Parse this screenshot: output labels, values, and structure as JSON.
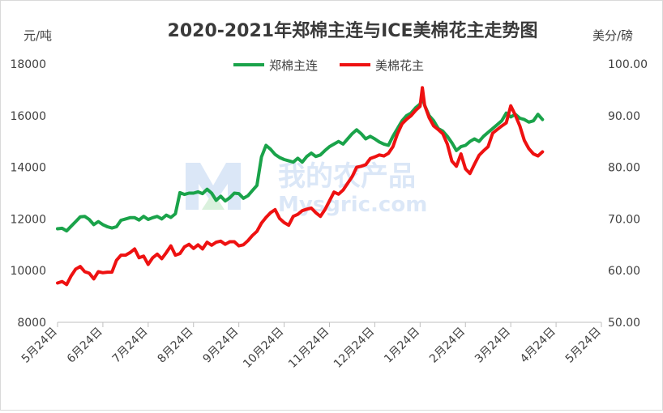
{
  "chart_data": {
    "type": "line",
    "title": "2020-2021年郑棉主连与ICE美棉花主走势图",
    "ylabel_left": "元/吨",
    "ylabel_right": "美分/磅",
    "x_tick_labels": [
      "5月24日",
      "6月24日",
      "7月24日",
      "8月24日",
      "9月24日",
      "10月24日",
      "11月24日",
      "12月24日",
      "1月24日",
      "2月24日",
      "3月24日",
      "4月24日",
      "5月24日"
    ],
    "y_left": {
      "min": 8000,
      "max": 18000,
      "ticks": [
        "8000",
        "10000",
        "12000",
        "14000",
        "16000",
        "18000"
      ]
    },
    "y_right": {
      "min": 50,
      "max": 100,
      "ticks": [
        "50.00",
        "60.00",
        "70.00",
        "80.00",
        "90.00",
        "100.00"
      ]
    },
    "legend": {
      "position": "top-center"
    },
    "watermark": "我的农产品 Mysgric.com",
    "series": [
      {
        "name": "郑棉主连",
        "color": "#1aa34a",
        "axis": "left",
        "points": [
          [
            0,
            11620
          ],
          [
            0.1,
            11640
          ],
          [
            0.2,
            11540
          ],
          [
            0.3,
            11720
          ],
          [
            0.4,
            11900
          ],
          [
            0.5,
            12080
          ],
          [
            0.6,
            12100
          ],
          [
            0.7,
            11980
          ],
          [
            0.8,
            11780
          ],
          [
            0.9,
            11900
          ],
          [
            1.0,
            11780
          ],
          [
            1.1,
            11700
          ],
          [
            1.2,
            11650
          ],
          [
            1.3,
            11700
          ],
          [
            1.4,
            11950
          ],
          [
            1.5,
            12000
          ],
          [
            1.6,
            12050
          ],
          [
            1.7,
            12050
          ],
          [
            1.8,
            11960
          ],
          [
            1.9,
            12100
          ],
          [
            2.0,
            11980
          ],
          [
            2.1,
            12050
          ],
          [
            2.2,
            12100
          ],
          [
            2.3,
            12000
          ],
          [
            2.4,
            12150
          ],
          [
            2.5,
            12060
          ],
          [
            2.6,
            12200
          ],
          [
            2.7,
            13020
          ],
          [
            2.8,
            12950
          ],
          [
            2.9,
            13000
          ],
          [
            3.0,
            13000
          ],
          [
            3.1,
            13050
          ],
          [
            3.2,
            12980
          ],
          [
            3.3,
            13150
          ],
          [
            3.4,
            13000
          ],
          [
            3.5,
            12720
          ],
          [
            3.6,
            12880
          ],
          [
            3.7,
            12700
          ],
          [
            3.8,
            12820
          ],
          [
            3.9,
            13000
          ],
          [
            4.0,
            12980
          ],
          [
            4.1,
            12800
          ],
          [
            4.2,
            12900
          ],
          [
            4.3,
            13100
          ],
          [
            4.4,
            13300
          ],
          [
            4.5,
            14400
          ],
          [
            4.6,
            14850
          ],
          [
            4.7,
            14700
          ],
          [
            4.8,
            14500
          ],
          [
            4.9,
            14380
          ],
          [
            5.0,
            14300
          ],
          [
            5.1,
            14250
          ],
          [
            5.2,
            14200
          ],
          [
            5.3,
            14350
          ],
          [
            5.4,
            14200
          ],
          [
            5.5,
            14420
          ],
          [
            5.6,
            14550
          ],
          [
            5.7,
            14420
          ],
          [
            5.8,
            14480
          ],
          [
            5.9,
            14650
          ],
          [
            6.0,
            14800
          ],
          [
            6.1,
            14900
          ],
          [
            6.2,
            15000
          ],
          [
            6.3,
            14900
          ],
          [
            6.4,
            15100
          ],
          [
            6.5,
            15300
          ],
          [
            6.6,
            15450
          ],
          [
            6.7,
            15300
          ],
          [
            6.8,
            15100
          ],
          [
            6.9,
            15200
          ],
          [
            7.0,
            15100
          ],
          [
            7.1,
            14980
          ],
          [
            7.2,
            14900
          ],
          [
            7.3,
            14850
          ],
          [
            7.4,
            15200
          ],
          [
            7.5,
            15500
          ],
          [
            7.6,
            15800
          ],
          [
            7.7,
            16000
          ],
          [
            7.8,
            16100
          ],
          [
            7.9,
            16300
          ],
          [
            8.0,
            16450
          ],
          [
            8.05,
            16700
          ],
          [
            8.1,
            16400
          ],
          [
            8.2,
            16000
          ],
          [
            8.3,
            15800
          ],
          [
            8.4,
            15500
          ],
          [
            8.5,
            15400
          ],
          [
            8.6,
            15200
          ],
          [
            8.7,
            14950
          ],
          [
            8.8,
            14650
          ],
          [
            8.9,
            14800
          ],
          [
            9.0,
            14850
          ],
          [
            9.1,
            15000
          ],
          [
            9.2,
            15100
          ],
          [
            9.3,
            15000
          ],
          [
            9.4,
            15200
          ],
          [
            9.5,
            15350
          ],
          [
            9.6,
            15500
          ],
          [
            9.7,
            15650
          ],
          [
            9.8,
            15800
          ],
          [
            9.9,
            16100
          ],
          [
            10.0,
            15950
          ],
          [
            10.1,
            16050
          ],
          [
            10.2,
            15900
          ],
          [
            10.3,
            15850
          ],
          [
            10.4,
            15750
          ],
          [
            10.5,
            15800
          ],
          [
            10.6,
            16050
          ],
          [
            10.7,
            15850
          ]
        ]
      },
      {
        "name": "美棉花主",
        "color": "#ee1111",
        "axis": "right",
        "points": [
          [
            0,
            57.6
          ],
          [
            0.1,
            57.9
          ],
          [
            0.2,
            57.3
          ],
          [
            0.3,
            59.0
          ],
          [
            0.4,
            60.3
          ],
          [
            0.5,
            60.8
          ],
          [
            0.6,
            59.8
          ],
          [
            0.7,
            59.5
          ],
          [
            0.8,
            58.4
          ],
          [
            0.9,
            59.8
          ],
          [
            1.0,
            59.6
          ],
          [
            1.1,
            59.7
          ],
          [
            1.2,
            59.7
          ],
          [
            1.3,
            62.0
          ],
          [
            1.4,
            63.0
          ],
          [
            1.5,
            63.0
          ],
          [
            1.6,
            63.5
          ],
          [
            1.7,
            64.2
          ],
          [
            1.8,
            62.5
          ],
          [
            1.9,
            62.8
          ],
          [
            2.0,
            61.2
          ],
          [
            2.1,
            62.5
          ],
          [
            2.2,
            63.2
          ],
          [
            2.3,
            62.3
          ],
          [
            2.4,
            63.5
          ],
          [
            2.5,
            64.8
          ],
          [
            2.6,
            63.0
          ],
          [
            2.7,
            63.3
          ],
          [
            2.8,
            64.6
          ],
          [
            2.9,
            65.1
          ],
          [
            3.0,
            64.3
          ],
          [
            3.1,
            65.0
          ],
          [
            3.2,
            64.2
          ],
          [
            3.3,
            65.5
          ],
          [
            3.4,
            64.9
          ],
          [
            3.5,
            65.5
          ],
          [
            3.6,
            65.7
          ],
          [
            3.7,
            65.1
          ],
          [
            3.8,
            65.6
          ],
          [
            3.9,
            65.6
          ],
          [
            4.0,
            64.8
          ],
          [
            4.1,
            65.0
          ],
          [
            4.2,
            65.8
          ],
          [
            4.3,
            66.8
          ],
          [
            4.4,
            67.6
          ],
          [
            4.5,
            69.2
          ],
          [
            4.6,
            70.3
          ],
          [
            4.7,
            71.2
          ],
          [
            4.8,
            71.8
          ],
          [
            4.9,
            70.1
          ],
          [
            5.0,
            69.3
          ],
          [
            5.1,
            68.8
          ],
          [
            5.2,
            70.5
          ],
          [
            5.3,
            70.9
          ],
          [
            5.4,
            71.6
          ],
          [
            5.5,
            71.9
          ],
          [
            5.6,
            72.1
          ],
          [
            5.7,
            71.2
          ],
          [
            5.8,
            70.5
          ],
          [
            5.9,
            71.8
          ],
          [
            6.0,
            73.5
          ],
          [
            6.1,
            75.2
          ],
          [
            6.2,
            74.8
          ],
          [
            6.3,
            75.6
          ],
          [
            6.4,
            76.9
          ],
          [
            6.5,
            78.2
          ],
          [
            6.6,
            80.0
          ],
          [
            6.7,
            80.2
          ],
          [
            6.8,
            80.5
          ],
          [
            6.9,
            81.7
          ],
          [
            7.0,
            82.0
          ],
          [
            7.1,
            82.4
          ],
          [
            7.2,
            82.2
          ],
          [
            7.3,
            82.7
          ],
          [
            7.4,
            84.0
          ],
          [
            7.5,
            86.5
          ],
          [
            7.6,
            88.4
          ],
          [
            7.7,
            89.3
          ],
          [
            7.8,
            90.0
          ],
          [
            7.9,
            91.0
          ],
          [
            8.0,
            91.8
          ],
          [
            8.05,
            95.4
          ],
          [
            8.1,
            92.0
          ],
          [
            8.2,
            89.6
          ],
          [
            8.3,
            88.0
          ],
          [
            8.4,
            87.3
          ],
          [
            8.5,
            86.5
          ],
          [
            8.6,
            84.5
          ],
          [
            8.7,
            81.2
          ],
          [
            8.8,
            80.2
          ],
          [
            8.9,
            82.6
          ],
          [
            9.0,
            79.7
          ],
          [
            9.1,
            78.8
          ],
          [
            9.2,
            80.6
          ],
          [
            9.3,
            82.3
          ],
          [
            9.4,
            83.2
          ],
          [
            9.5,
            84.0
          ],
          [
            9.6,
            86.6
          ],
          [
            9.7,
            87.3
          ],
          [
            9.8,
            88.0
          ],
          [
            9.9,
            88.6
          ],
          [
            10.0,
            91.9
          ],
          [
            10.1,
            90.1
          ],
          [
            10.2,
            88.0
          ],
          [
            10.3,
            85.2
          ],
          [
            10.4,
            83.6
          ],
          [
            10.5,
            82.6
          ],
          [
            10.6,
            82.2
          ],
          [
            10.7,
            83.0
          ]
        ]
      }
    ]
  }
}
